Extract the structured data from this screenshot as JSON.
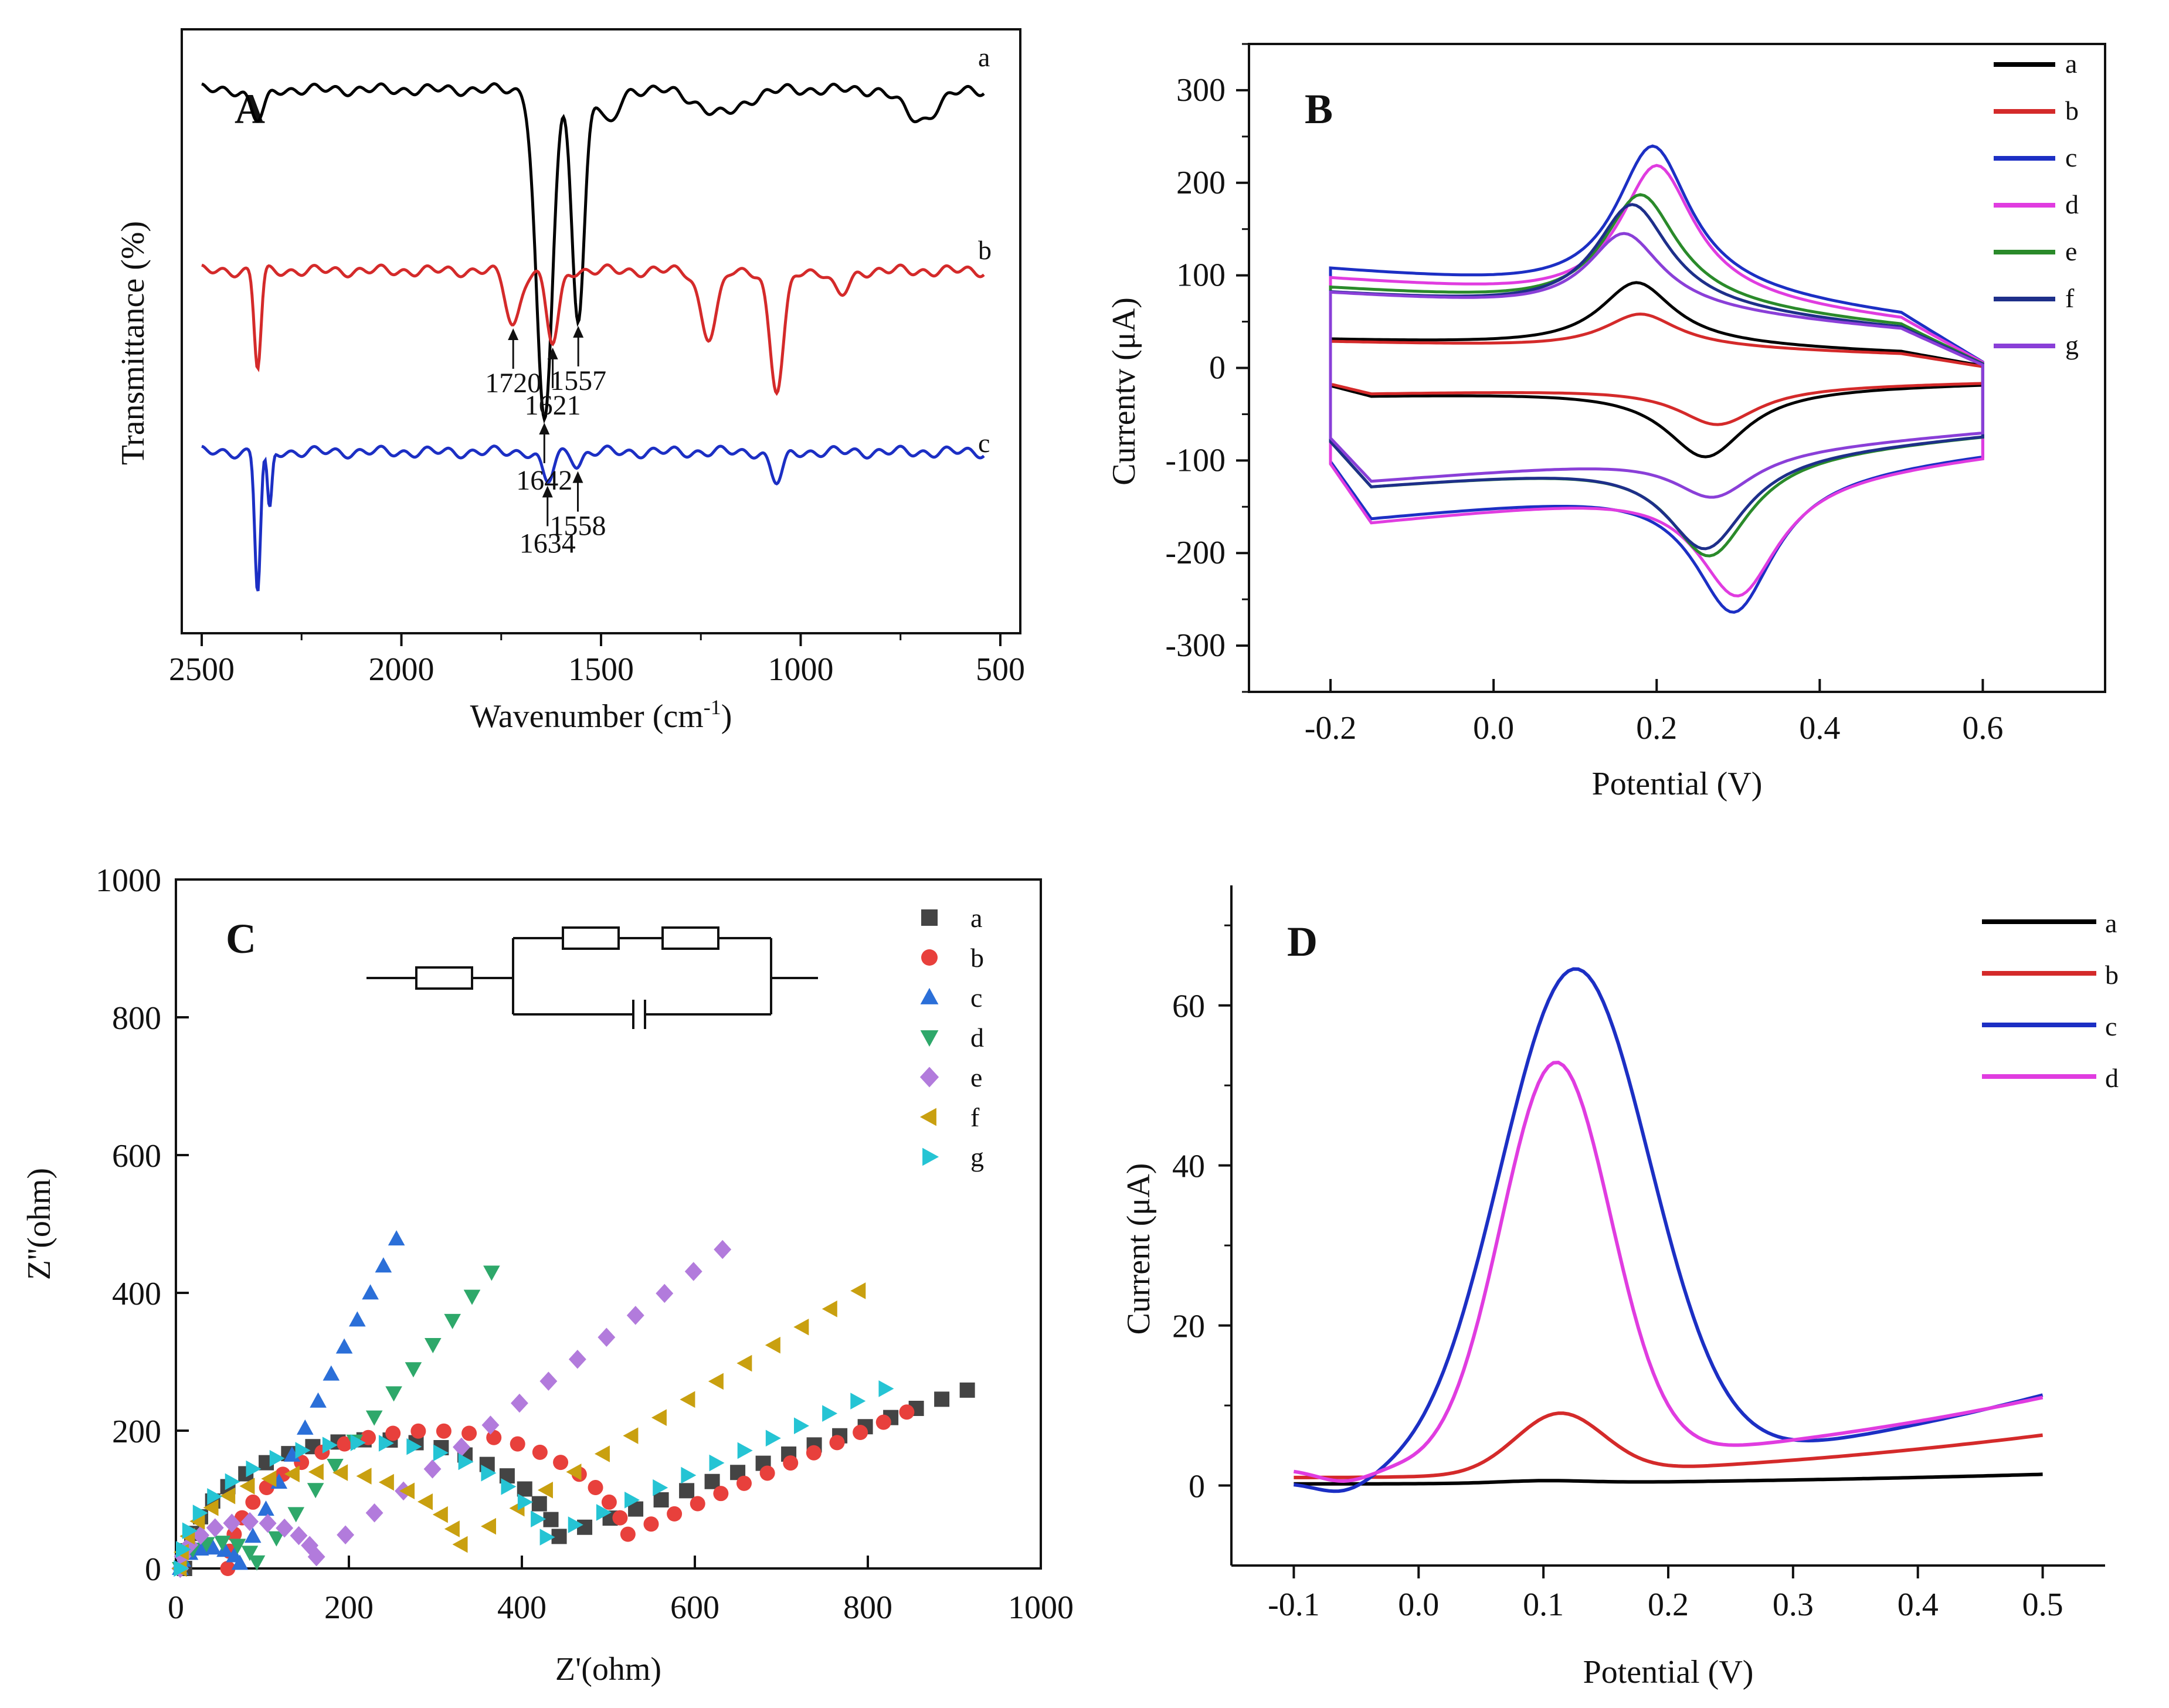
{
  "figure": {
    "panel_count": 4
  },
  "chart_data": [
    {
      "panel": "A",
      "type": "line",
      "title": "",
      "xlabel": "Wavenumber (cm",
      "xlabel_sup": "-1",
      "xlabel_close": ")",
      "ylabel": "Transmittance (%)",
      "xlim": [
        2500,
        500
      ],
      "x_reversed": true,
      "x_ticks": [
        2500,
        2000,
        1500,
        1000,
        500
      ],
      "y_ticks": [],
      "colors": {
        "a": "#000000",
        "b": "#d42a2a",
        "c": "#1c2fc4"
      },
      "series": [
        {
          "name": "a",
          "offset": 0.9,
          "dips": [
            [
              2360,
              0.05,
              25
            ],
            [
              1642,
              0.55,
              28
            ],
            [
              1557,
              0.38,
              22
            ],
            [
              1480,
              0.06,
              30
            ],
            [
              1200,
              0.04,
              80
            ],
            [
              700,
              0.05,
              60
            ]
          ]
        },
        {
          "name": "b",
          "offset": 0.6,
          "dips": [
            [
              2360,
              0.16,
              12
            ],
            [
              1720,
              0.09,
              25
            ],
            [
              1621,
              0.12,
              22
            ],
            [
              1230,
              0.11,
              30
            ],
            [
              1060,
              0.2,
              25
            ],
            [
              900,
              0.04,
              30
            ]
          ]
        },
        {
          "name": "c",
          "offset": 0.3,
          "dips": [
            [
              2360,
              0.23,
              10
            ],
            [
              2330,
              0.1,
              8
            ],
            [
              1634,
              0.05,
              20
            ],
            [
              1558,
              0.02,
              16
            ],
            [
              1060,
              0.05,
              22
            ]
          ]
        }
      ],
      "annotations": [
        {
          "text": "1642",
          "x": 1642,
          "series": "a"
        },
        {
          "text": "1557",
          "x": 1557,
          "series": "a"
        },
        {
          "text": "1720",
          "x": 1720,
          "series": "b"
        },
        {
          "text": "1621",
          "x": 1621,
          "series": "b"
        },
        {
          "text": "1634",
          "x": 1634,
          "series": "c"
        },
        {
          "text": "1558",
          "x": 1558,
          "series": "c"
        }
      ]
    },
    {
      "panel": "B",
      "type": "line",
      "title": "",
      "xlabel": "Potential (V)",
      "ylabel": "Currentv (μA)",
      "xlim": [
        -0.3,
        0.75
      ],
      "ylim": [
        -350,
        350
      ],
      "x_ticks": [
        -0.2,
        0.0,
        0.2,
        0.4,
        0.6
      ],
      "y_ticks": [
        -300,
        -200,
        -100,
        0,
        100,
        200,
        300
      ],
      "legend_position": "top-right",
      "series": [
        {
          "name": "a",
          "color": "#000000",
          "ipa": 100,
          "ipc": -100,
          "Epa": 0.175,
          "Epc": 0.26,
          "base_top": 30,
          "base_bot": -30
        },
        {
          "name": "b",
          "color": "#d42a2a",
          "ipa": 62,
          "ipc": -62,
          "Epa": 0.18,
          "Epc": 0.275,
          "base_top": 28,
          "base_bot": -28
        },
        {
          "name": "c",
          "color": "#1c2fc4",
          "ipa": 258,
          "ipc": -260,
          "Epa": 0.195,
          "Epc": 0.295,
          "base_top": 105,
          "base_bot": -165
        },
        {
          "name": "d",
          "color": "#e03ce0",
          "ipa": 236,
          "ipc": -240,
          "Epa": 0.2,
          "Epc": 0.3,
          "base_top": 95,
          "base_bot": -170
        },
        {
          "name": "e",
          "color": "#2a8a2a",
          "ipa": 200,
          "ipc": -197,
          "Epa": 0.18,
          "Epc": 0.265,
          "base_top": 85,
          "base_bot": -130
        },
        {
          "name": "f",
          "color": "#1e2f8a",
          "ipa": 188,
          "ipc": -188,
          "Epa": 0.17,
          "Epc": 0.26,
          "base_top": 80,
          "base_bot": -130
        },
        {
          "name": "g",
          "color": "#8a3fd8",
          "ipa": 152,
          "ipc": -128,
          "Epa": 0.16,
          "Epc": 0.27,
          "base_top": 80,
          "base_bot": -125
        }
      ]
    },
    {
      "panel": "C",
      "type": "scatter",
      "title": "",
      "xlabel": "Z'(ohm)",
      "ylabel": "Z''(ohm)",
      "xlim": [
        0,
        1000
      ],
      "ylim": [
        0,
        1000
      ],
      "x_ticks": [
        0,
        200,
        400,
        600,
        800,
        1000
      ],
      "y_ticks": [
        0,
        200,
        400,
        600,
        800,
        1000
      ],
      "legend_position": "top-right",
      "inset": "equivalent circuit: R_s in series with (R_ct + W) parallel to C_dl",
      "series": [
        {
          "name": "a",
          "color": "#444444",
          "marker": "square",
          "Rs": 10,
          "Rct": 440,
          "Wslope": 0.45,
          "xmax": 915,
          "n_arc": 22,
          "n_tail": 16
        },
        {
          "name": "b",
          "color": "#e8403c",
          "marker": "circle",
          "Rs": 60,
          "Rct": 470,
          "Wslope": 0.55,
          "xmax": 845,
          "n_arc": 24,
          "n_tail": 12
        },
        {
          "name": "c",
          "color": "#2b6fd8",
          "marker": "triangle-up",
          "Rs": 5,
          "Rct": 70,
          "Wslope": 2.6,
          "xmax": 255,
          "n_arc": 8,
          "n_tail": 12
        },
        {
          "name": "d",
          "color": "#2ea86a",
          "marker": "triangle-down",
          "Rs": 5,
          "Rct": 90,
          "Wslope": 1.55,
          "xmax": 365,
          "n_arc": 8,
          "n_tail": 12
        },
        {
          "name": "e",
          "color": "#b27bdc",
          "marker": "diamond",
          "Rs": 5,
          "Rct": 160,
          "Wslope": 0.95,
          "xmax": 632,
          "n_arc": 12,
          "n_tail": 14
        },
        {
          "name": "f",
          "color": "#c9a010",
          "marker": "triangle-left",
          "Rs": 5,
          "Rct": 330,
          "Wslope": 0.8,
          "xmax": 790,
          "n_arc": 18,
          "n_tail": 14
        },
        {
          "name": "g",
          "color": "#25c4d4",
          "marker": "triangle-right",
          "Rs": 5,
          "Rct": 430,
          "Wslope": 0.55,
          "xmax": 820,
          "n_arc": 20,
          "n_tail": 12
        }
      ]
    },
    {
      "panel": "D",
      "type": "line",
      "title": "",
      "xlabel": "Potential (V)",
      "ylabel": "Current (μA)",
      "xlim": [
        -0.15,
        0.55
      ],
      "ylim": [
        -10,
        75
      ],
      "x_ticks": [
        -0.1,
        0.0,
        0.1,
        0.2,
        0.3,
        0.4,
        0.5
      ],
      "y_ticks": [
        0,
        20,
        40,
        60
      ],
      "legend_position": "top-right",
      "series": [
        {
          "name": "a",
          "color": "#000000",
          "peak": 0.3,
          "center": 0.1,
          "width": 0.05,
          "base_start": 0.2,
          "base_end": 1.4
        },
        {
          "name": "b",
          "color": "#d42a2a",
          "peak": 7.5,
          "center": 0.113,
          "width": 0.05,
          "base_start": 1.0,
          "base_end": 6.3
        },
        {
          "name": "c",
          "color": "#1c2fc4",
          "peak": 63,
          "center": 0.125,
          "width": 0.085,
          "base_start": 0.3,
          "base_end": 11.3
        },
        {
          "name": "d",
          "color": "#e03ce0",
          "peak": 50,
          "center": 0.11,
          "width": 0.062,
          "base_start": 2.0,
          "base_end": 11.0
        }
      ]
    }
  ]
}
